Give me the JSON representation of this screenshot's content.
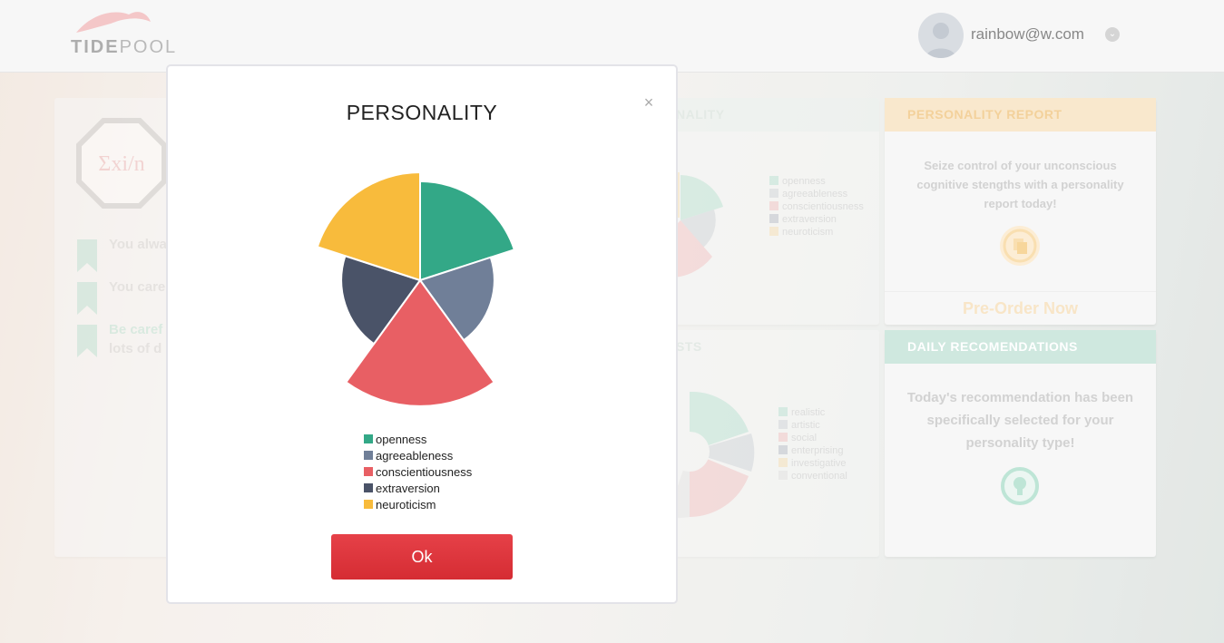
{
  "header": {
    "logo_text_bold": "TIDE",
    "logo_text_light": "POOL",
    "user_email": "rainbow@w.com",
    "user_menu_icon": "chevron-down-icon"
  },
  "background": {
    "left_card": {
      "badge_text": "Σxi/n",
      "items": [
        {
          "text": "You alwa"
        },
        {
          "text": "You care"
        },
        {
          "text": "Be caref",
          "text2": "lots of d"
        }
      ]
    },
    "personality_card": {
      "title": "NALITY",
      "legend": [
        "openness",
        "agreeableness",
        "conscientiousness",
        "extraversion",
        "neuroticism"
      ]
    },
    "interests_card": {
      "title": "STS",
      "legend": [
        "realistic",
        "artistic",
        "social",
        "enterprising",
        "investigative",
        "conventional"
      ]
    },
    "report_card": {
      "title": "PERSONALITY REPORT",
      "text": "Seize control of your unconscious cognitive stengths with a personality report today!",
      "icon": "copy-icon",
      "cta": "Pre-Order Now"
    },
    "recommendation_card": {
      "title": "DAILY RECOMENDATIONS",
      "text": "Today's recommendation has been specifically selected for your personality type!",
      "icon": "lightbulb-icon"
    }
  },
  "modal": {
    "title": "PERSONALITY",
    "close_label": "×",
    "ok_label": "Ok"
  },
  "chart_data": {
    "type": "pie",
    "title": "PERSONALITY",
    "series": [
      {
        "name": "openness",
        "value": 0.44,
        "color": "#33a887"
      },
      {
        "name": "agreeableness",
        "value": 0.33,
        "color": "#707f98"
      },
      {
        "name": "conscientiousness",
        "value": 0.56,
        "color": "#e85f64"
      },
      {
        "name": "extraversion",
        "value": 0.35,
        "color": "#4a5368"
      },
      {
        "name": "neuroticism",
        "value": 0.48,
        "color": "#f8bb3c"
      }
    ],
    "legend_placement": "bottom"
  }
}
